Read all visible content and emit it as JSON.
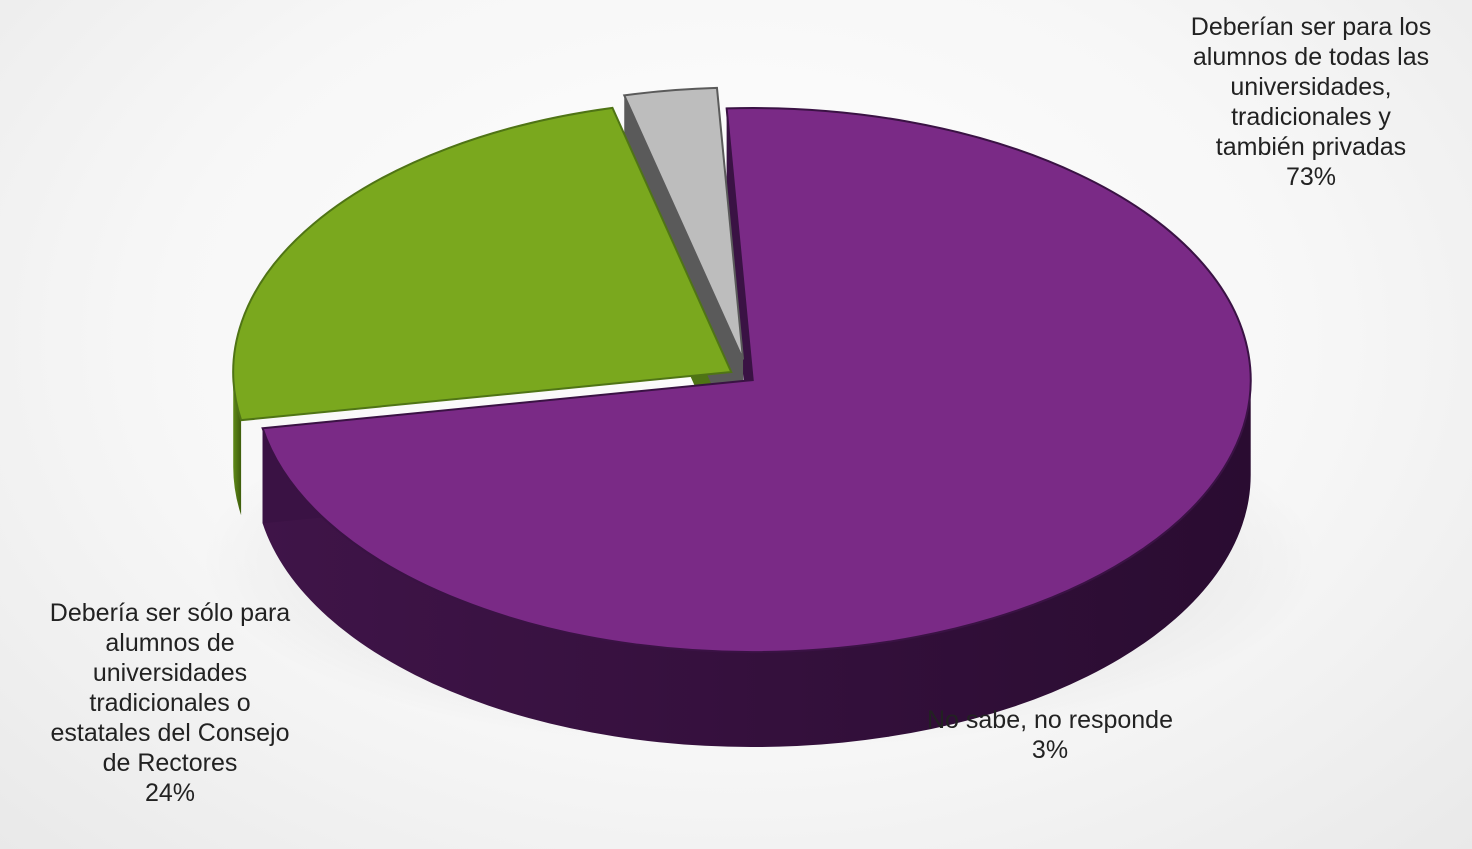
{
  "chart_data": {
    "type": "pie",
    "style": "3d exploded",
    "slices": [
      {
        "label": "Deberían ser para los\nalumnos de todas las\nuniversidades,\ntradicionales y\ntambién privadas",
        "value": 73,
        "value_label": "73%",
        "color": "#7a2a86",
        "side_color": "#3a1244"
      },
      {
        "label": "Debería ser sólo para\nalumnos de\nuniversidades\ntradicionales o\nestatales del Consejo\nde Rectores",
        "value": 24,
        "value_label": "24%",
        "color": "#7aa81e",
        "side_color": "#4f7415"
      },
      {
        "label": "No sabe, no responde",
        "value": 3,
        "value_label": "3%",
        "color": "#bdbdbd",
        "side_color": "#5a5a5a"
      }
    ]
  }
}
